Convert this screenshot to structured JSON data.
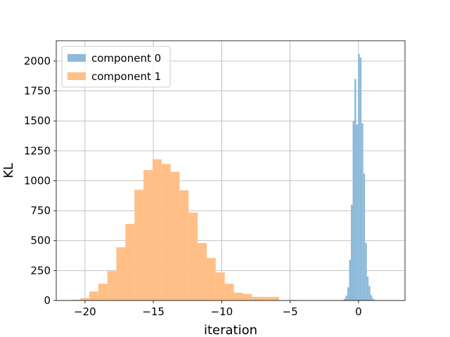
{
  "chart_data": {
    "type": "histogram",
    "title": "",
    "xlabel": "iteration",
    "ylabel": "KL",
    "xlim": [
      -22.1,
      3.4
    ],
    "ylim": [
      0,
      2170
    ],
    "x_ticks": [
      -20,
      -15,
      -10,
      -5,
      0
    ],
    "y_ticks": [
      0,
      250,
      500,
      750,
      1000,
      1250,
      1500,
      1750,
      2000
    ],
    "grid": true,
    "legend_placement": "upper-left",
    "series": [
      {
        "name": "component 1",
        "color": "#ffbf86",
        "bin_width": 0.66,
        "bins": [
          {
            "x0": -21.0,
            "count": 6
          },
          {
            "x0": -20.34,
            "count": 20
          },
          {
            "x0": -19.68,
            "count": 75
          },
          {
            "x0": -19.02,
            "count": 140
          },
          {
            "x0": -18.36,
            "count": 245
          },
          {
            "x0": -17.7,
            "count": 445
          },
          {
            "x0": -17.04,
            "count": 640
          },
          {
            "x0": -16.38,
            "count": 925
          },
          {
            "x0": -15.72,
            "count": 1090
          },
          {
            "x0": -15.06,
            "count": 1180
          },
          {
            "x0": -14.4,
            "count": 1140
          },
          {
            "x0": -13.74,
            "count": 1075
          },
          {
            "x0": -13.08,
            "count": 920
          },
          {
            "x0": -12.42,
            "count": 735
          },
          {
            "x0": -11.76,
            "count": 480
          },
          {
            "x0": -11.1,
            "count": 355
          },
          {
            "x0": -10.44,
            "count": 235
          },
          {
            "x0": -9.78,
            "count": 140
          },
          {
            "x0": -9.12,
            "count": 65
          },
          {
            "x0": -8.46,
            "count": 55
          },
          {
            "x0": -7.8,
            "count": 30
          },
          {
            "x0": -7.14,
            "count": 30
          },
          {
            "x0": -6.48,
            "count": 30
          },
          {
            "x0": -5.82,
            "count": 0
          },
          {
            "x0": -5.16,
            "count": 5
          },
          {
            "x0": -4.5,
            "count": 0
          }
        ]
      },
      {
        "name": "component 0",
        "color": "#8ebad9",
        "bin_width": 0.13,
        "bins": [
          {
            "x0": -1.08,
            "count": 15
          },
          {
            "x0": -0.95,
            "count": 40
          },
          {
            "x0": -0.82,
            "count": 110
          },
          {
            "x0": -0.69,
            "count": 340
          },
          {
            "x0": -0.56,
            "count": 800
          },
          {
            "x0": -0.43,
            "count": 1500
          },
          {
            "x0": -0.3,
            "count": 1850
          },
          {
            "x0": -0.17,
            "count": 1470
          },
          {
            "x0": -0.04,
            "count": 2060
          },
          {
            "x0": 0.09,
            "count": 2030
          },
          {
            "x0": 0.22,
            "count": 1480
          },
          {
            "x0": 0.35,
            "count": 1060
          },
          {
            "x0": 0.48,
            "count": 480
          },
          {
            "x0": 0.61,
            "count": 200
          },
          {
            "x0": 0.74,
            "count": 120
          },
          {
            "x0": 0.87,
            "count": 45
          },
          {
            "x0": 1.0,
            "count": 15
          },
          {
            "x0": 1.13,
            "count": 5
          }
        ]
      }
    ],
    "legend": [
      {
        "label": "component 0",
        "color": "#8ebad9"
      },
      {
        "label": "component 1",
        "color": "#ffbf86"
      }
    ]
  }
}
